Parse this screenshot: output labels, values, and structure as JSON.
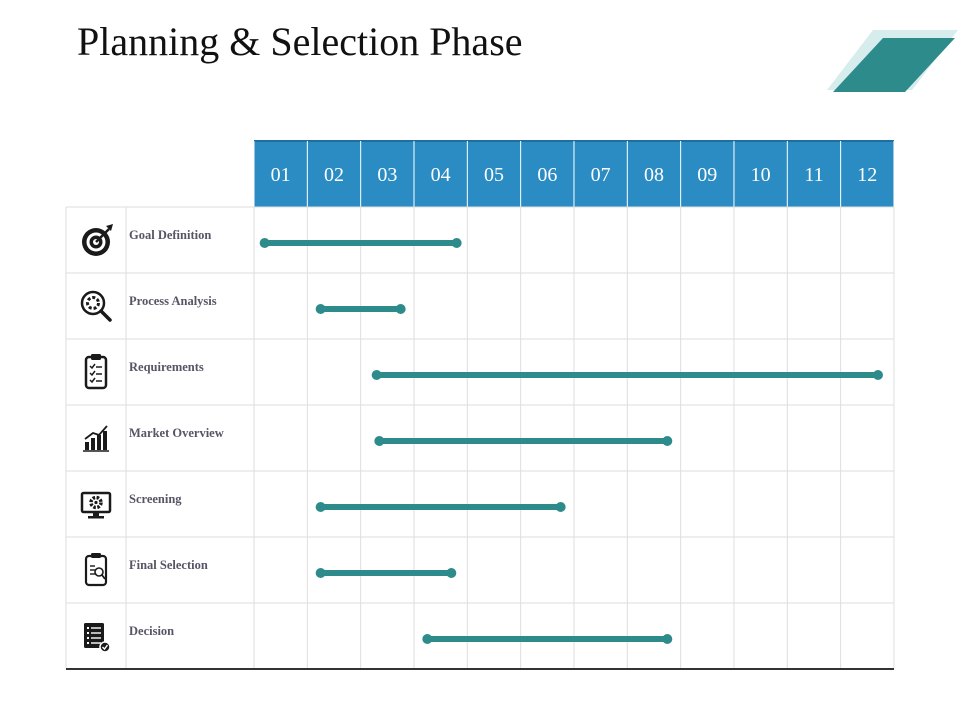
{
  "title": "Planning & Selection Phase",
  "colors": {
    "header": "#2b8cc4",
    "bar": "#2e8b8c",
    "grid": "#dedede",
    "accent_dark": "#2e8b8c",
    "accent_light": "#d7ecec"
  },
  "chart_data": {
    "type": "gantt",
    "title": "Planning & Selection Phase",
    "columns": [
      "01",
      "02",
      "03",
      "04",
      "05",
      "06",
      "07",
      "08",
      "09",
      "10",
      "11",
      "12"
    ],
    "tasks": [
      {
        "name": "Goal Definition",
        "icon": "target-icon",
        "start": 0.2,
        "end": 3.8
      },
      {
        "name": "Process Analysis",
        "icon": "magnifier-gear-icon",
        "start": 1.25,
        "end": 2.75
      },
      {
        "name": "Requirements",
        "icon": "clipboard-checklist-icon",
        "start": 2.3,
        "end": 11.7
      },
      {
        "name": "Market Overview",
        "icon": "bar-chart-icon",
        "start": 2.35,
        "end": 7.75
      },
      {
        "name": "Screening",
        "icon": "monitor-gear-icon",
        "start": 1.25,
        "end": 5.75
      },
      {
        "name": "Final Selection",
        "icon": "clipboard-search-icon",
        "start": 1.25,
        "end": 3.7
      },
      {
        "name": "Decision",
        "icon": "document-list-icon",
        "start": 3.25,
        "end": 7.75
      }
    ]
  }
}
